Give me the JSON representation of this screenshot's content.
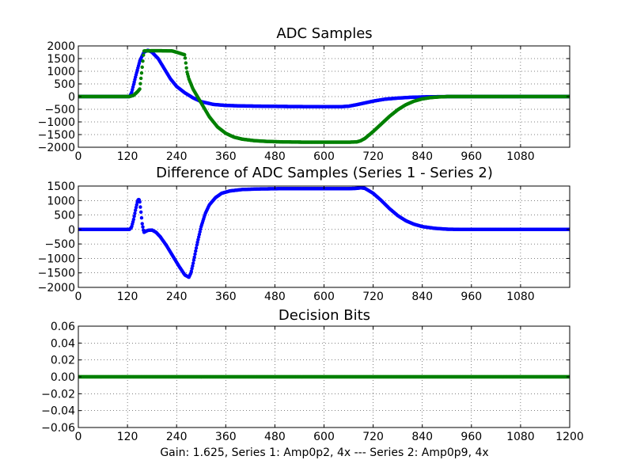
{
  "figure": {
    "caption": "Gain: 1.625, Series 1: Amp0p2, 4x --- Series 2: Amp0p9, 4x",
    "colors": {
      "series_1": "#0000ff",
      "series_2": "#008000"
    }
  },
  "chart_data": [
    {
      "type": "scatter",
      "title": "ADC Samples",
      "xlabel": "",
      "ylabel": "",
      "xlim": [
        0,
        1200
      ],
      "ylim": [
        -2000,
        2000
      ],
      "grid": true,
      "x_ticks": [
        "0",
        "120",
        "240",
        "360",
        "480",
        "600",
        "720",
        "840",
        "960",
        "1080"
      ],
      "y_ticks": [
        "2000",
        "1500",
        "1000",
        "500",
        "0",
        "−500",
        "−1000",
        "−1500",
        "−2000"
      ],
      "series": [
        {
          "color": "#0000ff",
          "points": [
            [
              0,
              0
            ],
            [
              60,
              0
            ],
            [
              100,
              0
            ],
            [
              125,
              0
            ],
            [
              130,
              150
            ],
            [
              140,
              800
            ],
            [
              150,
              1400
            ],
            [
              160,
              1750
            ],
            [
              170,
              1830
            ],
            [
              180,
              1750
            ],
            [
              195,
              1500
            ],
            [
              210,
              1100
            ],
            [
              225,
              700
            ],
            [
              240,
              400
            ],
            [
              260,
              150
            ],
            [
              280,
              -50
            ],
            [
              300,
              -200
            ],
            [
              330,
              -310
            ],
            [
              360,
              -350
            ],
            [
              400,
              -370
            ],
            [
              450,
              -380
            ],
            [
              500,
              -390
            ],
            [
              550,
              -395
            ],
            [
              600,
              -400
            ],
            [
              640,
              -400
            ],
            [
              660,
              -380
            ],
            [
              680,
              -320
            ],
            [
              700,
              -250
            ],
            [
              720,
              -180
            ],
            [
              750,
              -100
            ],
            [
              780,
              -60
            ],
            [
              810,
              -30
            ],
            [
              840,
              -15
            ],
            [
              870,
              -5
            ],
            [
              900,
              0
            ],
            [
              1200,
              0
            ]
          ]
        },
        {
          "color": "#008000",
          "points": [
            [
              0,
              0
            ],
            [
              100,
              0
            ],
            [
              125,
              0
            ],
            [
              135,
              50
            ],
            [
              145,
              200
            ],
            [
              150,
              300
            ],
            [
              155,
              1000
            ],
            [
              160,
              1800
            ],
            [
              180,
              1810
            ],
            [
              200,
              1810
            ],
            [
              230,
              1800
            ],
            [
              250,
              1700
            ],
            [
              260,
              1650
            ],
            [
              265,
              1000
            ],
            [
              270,
              700
            ],
            [
              280,
              300
            ],
            [
              300,
              -250
            ],
            [
              320,
              -800
            ],
            [
              340,
              -1200
            ],
            [
              360,
              -1450
            ],
            [
              380,
              -1600
            ],
            [
              400,
              -1680
            ],
            [
              430,
              -1740
            ],
            [
              460,
              -1770
            ],
            [
              500,
              -1790
            ],
            [
              560,
              -1800
            ],
            [
              620,
              -1800
            ],
            [
              660,
              -1800
            ],
            [
              680,
              -1790
            ],
            [
              690,
              -1740
            ],
            [
              700,
              -1650
            ],
            [
              720,
              -1380
            ],
            [
              740,
              -1080
            ],
            [
              760,
              -780
            ],
            [
              780,
              -520
            ],
            [
              800,
              -320
            ],
            [
              820,
              -180
            ],
            [
              840,
              -90
            ],
            [
              860,
              -40
            ],
            [
              880,
              -15
            ],
            [
              900,
              0
            ],
            [
              1200,
              0
            ]
          ]
        }
      ]
    },
    {
      "type": "scatter",
      "title": "Difference of ADC Samples (Series 1 - Series 2)",
      "xlabel": "",
      "ylabel": "",
      "xlim": [
        0,
        1200
      ],
      "ylim": [
        -2000,
        1500
      ],
      "grid": true,
      "x_ticks": [
        "0",
        "120",
        "240",
        "360",
        "480",
        "600",
        "720",
        "840",
        "960",
        "1080"
      ],
      "y_ticks": [
        "1500",
        "1000",
        "500",
        "0",
        "−500",
        "−1000",
        "−1500",
        "−2000"
      ],
      "series": [
        {
          "color": "#0000ff",
          "points": [
            [
              0,
              0
            ],
            [
              60,
              0
            ],
            [
              100,
              0
            ],
            [
              125,
              0
            ],
            [
              130,
              80
            ],
            [
              135,
              350
            ],
            [
              140,
              700
            ],
            [
              145,
              1000
            ],
            [
              148,
              1050
            ],
            [
              150,
              950
            ],
            [
              153,
              600
            ],
            [
              156,
              200
            ],
            [
              160,
              -100
            ],
            [
              170,
              -30
            ],
            [
              180,
              -20
            ],
            [
              190,
              -100
            ],
            [
              200,
              -250
            ],
            [
              215,
              -550
            ],
            [
              230,
              -900
            ],
            [
              245,
              -1250
            ],
            [
              260,
              -1570
            ],
            [
              270,
              -1650
            ],
            [
              275,
              -1500
            ],
            [
              280,
              -1200
            ],
            [
              290,
              -500
            ],
            [
              300,
              100
            ],
            [
              310,
              550
            ],
            [
              320,
              850
            ],
            [
              335,
              1100
            ],
            [
              350,
              1250
            ],
            [
              370,
              1330
            ],
            [
              400,
              1380
            ],
            [
              440,
              1400
            ],
            [
              500,
              1410
            ],
            [
              560,
              1410
            ],
            [
              620,
              1410
            ],
            [
              660,
              1410
            ],
            [
              680,
              1420
            ],
            [
              690,
              1440
            ],
            [
              700,
              1420
            ],
            [
              720,
              1250
            ],
            [
              740,
              1000
            ],
            [
              760,
              720
            ],
            [
              780,
              480
            ],
            [
              800,
              300
            ],
            [
              820,
              180
            ],
            [
              840,
              100
            ],
            [
              870,
              40
            ],
            [
              900,
              10
            ],
            [
              940,
              0
            ],
            [
              1200,
              0
            ]
          ]
        }
      ]
    },
    {
      "type": "scatter",
      "title": "Decision Bits",
      "xlabel": "",
      "ylabel": "",
      "xlim": [
        0,
        1200
      ],
      "ylim": [
        -0.06,
        0.06
      ],
      "grid": true,
      "x_ticks": [
        "0",
        "120",
        "240",
        "360",
        "480",
        "600",
        "720",
        "840",
        "960",
        "1080",
        "1200"
      ],
      "y_ticks": [
        "0.06",
        "0.04",
        "0.02",
        "0.00",
        "−0.02",
        "−0.04",
        "−0.06"
      ],
      "series": [
        {
          "color": "#008000",
          "points": [
            [
              0,
              0
            ],
            [
              1200,
              0
            ]
          ]
        }
      ]
    }
  ]
}
